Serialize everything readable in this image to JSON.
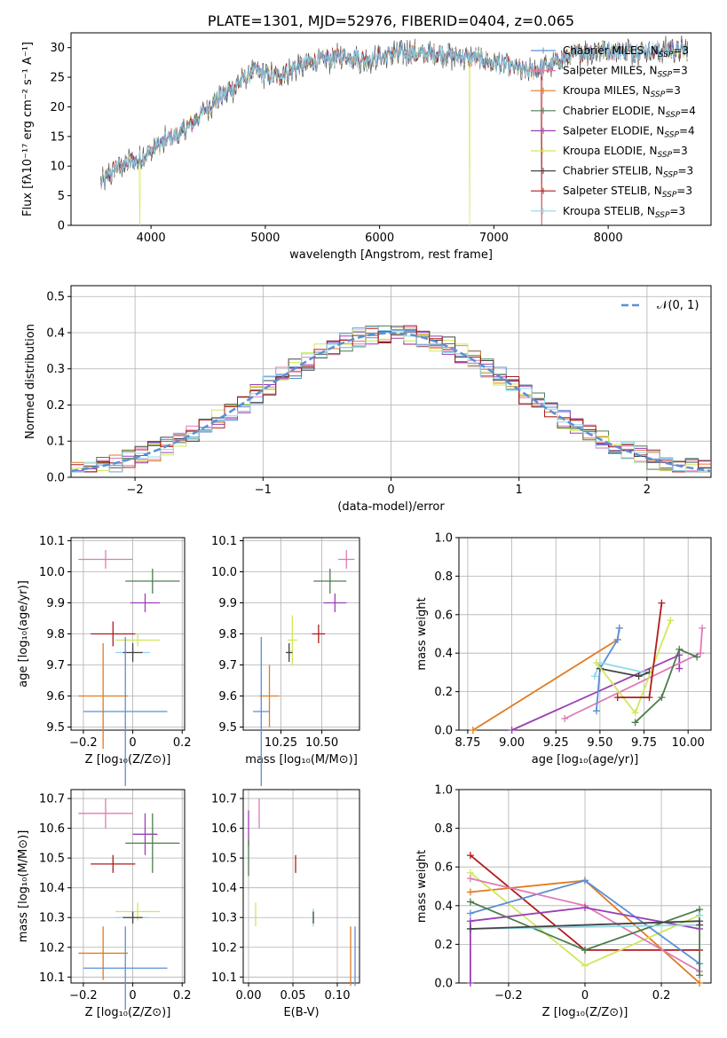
{
  "colors": {
    "Chabrier MILES": "#5b8fd6",
    "Salpeter MILES": "#e07ab5",
    "Kroupa MILES": "#e07b22",
    "Chabrier ELODIE": "#4d7d4d",
    "Salpeter ELODIE": "#9b3fb5",
    "Kroupa ELODIE": "#cfe85a",
    "Chabrier STELIB": "#444444",
    "Salpeter STELIB": "#b01c1c",
    "Kroupa STELIB": "#8fd8e8",
    "cyan": "#66cccc",
    "gauss": "#5b8fd6"
  },
  "chart_data": [
    {
      "id": "spectrum",
      "type": "line",
      "title": "PLATE=1301, MJD=52976, FIBERID=0404, z=0.065",
      "xlabel": "wavelength [Angstrom, rest frame]",
      "ylabel": "Flux [fλ10⁻¹⁷ erg cm⁻² s⁻¹ A⁻¹]",
      "xlim": [
        3300,
        8900
      ],
      "ylim": [
        0,
        32.5
      ],
      "xticks": [
        4000,
        5000,
        6000,
        7000,
        8000
      ],
      "yticks": [
        0,
        5,
        10,
        15,
        20,
        25,
        30
      ],
      "legend_position": "right",
      "legend": [
        {
          "name": "Chabrier MILES",
          "suffix": "3"
        },
        {
          "name": "Salpeter MILES",
          "suffix": "3"
        },
        {
          "name": "Kroupa MILES",
          "suffix": "3"
        },
        {
          "name": "Chabrier ELODIE",
          "suffix": "4"
        },
        {
          "name": "Salpeter ELODIE",
          "suffix": "4"
        },
        {
          "name": "Kroupa ELODIE",
          "suffix": "3"
        },
        {
          "name": "Chabrier STELIB",
          "suffix": "3"
        },
        {
          "name": "Salpeter STELIB",
          "suffix": "3"
        },
        {
          "name": "Kroupa STELIB",
          "suffix": "3"
        }
      ],
      "continuum_x": [
        3560,
        3700,
        3900,
        4100,
        4300,
        4500,
        4700,
        4900,
        5100,
        5300,
        5500,
        5700,
        5900,
        6100,
        6300,
        6500,
        6700,
        6900,
        7100,
        7300,
        7500,
        7700,
        7900,
        8100,
        8300,
        8500,
        8700
      ],
      "continuum_y": [
        7,
        10,
        11,
        14,
        16,
        20,
        23,
        26,
        25,
        27,
        28,
        28.5,
        28,
        29,
        29,
        29,
        28.5,
        28,
        27,
        26,
        27,
        29,
        29.5,
        29.5,
        29.5,
        29.5,
        29.5
      ],
      "dropouts": [
        {
          "series": "Kroupa ELODIE",
          "x": 3900
        },
        {
          "series": "Kroupa ELODIE",
          "x": 6790
        },
        {
          "series": "Salpeter STELIB",
          "x": 7420
        }
      ]
    },
    {
      "id": "residual_hist",
      "type": "line",
      "xlabel": "(data-model)/error",
      "ylabel": "Normed distribution",
      "xlim": [
        -2.5,
        2.5
      ],
      "ylim": [
        0,
        0.53
      ],
      "xticks": [
        -2,
        -1,
        0,
        1,
        2
      ],
      "yticks": [
        0.0,
        0.1,
        0.2,
        0.3,
        0.4,
        0.5
      ],
      "legend_position": "top-right",
      "gauss_label": "𝒩(0, 1)",
      "bin_width": 0.1
    },
    {
      "id": "age_vs_Z",
      "type": "scatter",
      "xlabel": "Z [log₁₀(Z/Z⊙)]",
      "ylabel": "age  [log₁₀(age/yr)]",
      "xlim": [
        -0.25,
        0.21
      ],
      "ylim": [
        9.49,
        10.11
      ],
      "xticks": [
        -0.2,
        0.0,
        0.2
      ],
      "yticks": [
        9.5,
        9.6,
        9.7,
        9.8,
        9.9,
        10.0,
        10.1
      ],
      "points": [
        {
          "series": "Salpeter MILES",
          "x": -0.11,
          "y": 10.04,
          "xerr": 0.11,
          "yerr": 0.03
        },
        {
          "series": "Chabrier ELODIE",
          "x": 0.08,
          "y": 9.97,
          "xerr": 0.11,
          "yerr": 0.04
        },
        {
          "series": "Salpeter ELODIE",
          "x": 0.05,
          "y": 9.9,
          "xerr": 0.06,
          "yerr": 0.03
        },
        {
          "series": "Salpeter STELIB",
          "x": -0.08,
          "y": 9.8,
          "xerr": 0.09,
          "yerr": 0.04
        },
        {
          "series": "Kroupa ELODIE",
          "x": 0.02,
          "y": 9.78,
          "xerr": 0.09,
          "yerr": 0.02
        },
        {
          "series": "Kroupa STELIB",
          "x": 0.0,
          "y": 9.74,
          "xerr": 0.07,
          "yerr": 0.02
        },
        {
          "series": "Chabrier STELIB",
          "x": 0.0,
          "y": 9.74,
          "xerr": 0.04,
          "yerr": 0.03
        },
        {
          "series": "Kroupa MILES",
          "x": -0.12,
          "y": 9.6,
          "xerr": 0.1,
          "yerr": 0.17
        },
        {
          "series": "Chabrier MILES",
          "x": -0.03,
          "y": 9.55,
          "xerr": 0.17,
          "yerr": 0.24
        }
      ]
    },
    {
      "id": "age_vs_mass",
      "type": "scatter",
      "xlabel": "mass [log₁₀(M/M⊙)]",
      "ylabel": "",
      "xlim": [
        10.02,
        10.73
      ],
      "ylim": [
        9.49,
        10.11
      ],
      "xticks": [
        10.25,
        10.5
      ],
      "xticklabels": [
        "10.25",
        "10.50"
      ],
      "yticks": [
        9.5,
        9.6,
        9.7,
        9.8,
        9.9,
        10.0,
        10.1
      ],
      "points": [
        {
          "series": "Salpeter MILES",
          "x": 10.65,
          "y": 10.04,
          "xerr": 0.05,
          "yerr": 0.03
        },
        {
          "series": "Chabrier ELODIE",
          "x": 10.55,
          "y": 9.97,
          "xerr": 0.1,
          "yerr": 0.04
        },
        {
          "series": "Salpeter ELODIE",
          "x": 10.58,
          "y": 9.9,
          "xerr": 0.07,
          "yerr": 0.03
        },
        {
          "series": "Salpeter STELIB",
          "x": 10.48,
          "y": 9.8,
          "xerr": 0.04,
          "yerr": 0.03
        },
        {
          "series": "Kroupa ELODIE",
          "x": 10.32,
          "y": 9.78,
          "xerr": 0.03,
          "yerr": 0.08
        },
        {
          "series": "Kroupa STELIB",
          "x": 10.3,
          "y": 9.74,
          "xerr": 0.02,
          "yerr": 0.02
        },
        {
          "series": "Chabrier STELIB",
          "x": 10.3,
          "y": 9.74,
          "xerr": 0.02,
          "yerr": 0.03
        },
        {
          "series": "Kroupa MILES",
          "x": 10.18,
          "y": 9.6,
          "xerr": 0.06,
          "yerr": 0.1
        },
        {
          "series": "Chabrier MILES",
          "x": 10.13,
          "y": 9.55,
          "xerr": 0.05,
          "yerr": 0.24
        }
      ]
    },
    {
      "id": "massweight_vs_age",
      "type": "line",
      "xlabel": "age  [log₁₀(age/yr)]",
      "ylabel": "mass weight",
      "xlim": [
        8.7,
        10.13
      ],
      "ylim": [
        0,
        1
      ],
      "xticks": [
        8.75,
        9.0,
        9.25,
        9.5,
        9.75,
        10.0
      ],
      "xticklabels": [
        "8.75",
        "9.00",
        "9.25",
        "9.50",
        "9.75",
        "10.00"
      ],
      "yticks": [
        0.0,
        0.2,
        0.4,
        0.6,
        0.8,
        1.0
      ],
      "series": [
        {
          "name": "Kroupa MILES",
          "x": [
            8.78,
            9.6,
            9.61
          ],
          "y": [
            0.0,
            0.47,
            0.53
          ]
        },
        {
          "name": "Salpeter ELODIE",
          "x": [
            9.0,
            9.95,
            9.95
          ],
          "y": [
            0.0,
            0.39,
            0.32
          ]
        },
        {
          "name": "Salpeter MILES",
          "x": [
            9.3,
            10.07,
            10.08
          ],
          "y": [
            0.06,
            0.4,
            0.53
          ]
        },
        {
          "name": "Chabrier MILES",
          "x": [
            9.48,
            9.5,
            9.6,
            9.61
          ],
          "y": [
            0.1,
            0.32,
            0.47,
            0.53
          ]
        },
        {
          "name": "Kroupa STELIB",
          "x": [
            9.47,
            9.5,
            9.75
          ],
          "y": [
            0.28,
            0.35,
            0.3
          ]
        },
        {
          "name": "Chabrier STELIB",
          "x": [
            9.5,
            9.72,
            9.78
          ],
          "y": [
            0.32,
            0.28,
            0.3
          ]
        },
        {
          "name": "Kroupa ELODIE",
          "x": [
            9.48,
            9.7,
            9.9
          ],
          "y": [
            0.35,
            0.09,
            0.57
          ]
        },
        {
          "name": "Chabrier ELODIE",
          "x": [
            9.7,
            9.85,
            9.95,
            10.05
          ],
          "y": [
            0.04,
            0.17,
            0.42,
            0.38
          ]
        },
        {
          "name": "Salpeter STELIB",
          "x": [
            9.6,
            9.78,
            9.85
          ],
          "y": [
            0.17,
            0.17,
            0.66
          ]
        }
      ]
    },
    {
      "id": "mass_vs_Z",
      "type": "scatter",
      "xlabel": "Z [log₁₀(Z/Z⊙)]",
      "ylabel": "mass [log₁₀(M/M⊙)]",
      "xlim": [
        -0.25,
        0.21
      ],
      "ylim": [
        10.08,
        10.73
      ],
      "xticks": [
        -0.2,
        0.0,
        0.2
      ],
      "yticks": [
        10.1,
        10.2,
        10.3,
        10.4,
        10.5,
        10.6,
        10.7
      ],
      "points": [
        {
          "series": "Salpeter MILES",
          "x": -0.11,
          "y": 10.65,
          "xerr": 0.11,
          "yerr": 0.05
        },
        {
          "series": "Salpeter ELODIE",
          "x": 0.05,
          "y": 10.58,
          "xerr": 0.05,
          "yerr": 0.07
        },
        {
          "series": "Chabrier ELODIE",
          "x": 0.08,
          "y": 10.55,
          "xerr": 0.11,
          "yerr": 0.1
        },
        {
          "series": "Salpeter STELIB",
          "x": -0.08,
          "y": 10.48,
          "xerr": 0.09,
          "yerr": 0.03
        },
        {
          "series": "Kroupa ELODIE",
          "x": 0.02,
          "y": 10.32,
          "xerr": 0.09,
          "yerr": 0.03
        },
        {
          "series": "Kroupa STELIB",
          "x": 0.0,
          "y": 10.3,
          "xerr": 0.07,
          "yerr": 0.02
        },
        {
          "series": "Chabrier STELIB",
          "x": 0.0,
          "y": 10.3,
          "xerr": 0.04,
          "yerr": 0.02
        },
        {
          "series": "Kroupa MILES",
          "x": -0.12,
          "y": 10.18,
          "xerr": 0.1,
          "yerr": 0.09
        },
        {
          "series": "Chabrier MILES",
          "x": -0.03,
          "y": 10.13,
          "xerr": 0.17,
          "yerr": 0.14
        }
      ]
    },
    {
      "id": "mass_vs_ebv",
      "type": "scatter",
      "xlabel": "E(B-V)",
      "ylabel": "",
      "xlim": [
        -0.006,
        0.125
      ],
      "ylim": [
        10.08,
        10.73
      ],
      "xticks": [
        0.0,
        0.05,
        0.1
      ],
      "xticklabels": [
        "0.00",
        "0.05",
        "0.10"
      ],
      "yticks": [
        10.1,
        10.2,
        10.3,
        10.4,
        10.5,
        10.6,
        10.7
      ],
      "points": [
        {
          "series": "Salpeter MILES",
          "x": 0.012,
          "y": 10.65,
          "xerr": 0,
          "yerr": 0.05
        },
        {
          "series": "Salpeter ELODIE",
          "x": 0.0,
          "y": 10.6,
          "xerr": 0,
          "yerr": 0.06
        },
        {
          "series": "Chabrier ELODIE",
          "x": 0.0,
          "y": 10.5,
          "xerr": 0,
          "yerr": 0.06
        },
        {
          "series": "Salpeter STELIB",
          "x": 0.053,
          "y": 10.48,
          "xerr": 0,
          "yerr": 0.03
        },
        {
          "series": "Kroupa ELODIE",
          "x": 0.008,
          "y": 10.31,
          "xerr": 0,
          "yerr": 0.04
        },
        {
          "series": "Kroupa STELIB",
          "x": 0.073,
          "y": 10.3,
          "xerr": 0,
          "yerr": 0.03
        },
        {
          "series": "Chabrier STELIB",
          "x": 0.073,
          "y": 10.3,
          "xerr": 0,
          "yerr": 0.02
        },
        {
          "series": "Kroupa MILES",
          "x": 0.115,
          "y": 10.17,
          "xerr": 0,
          "yerr": 0.1
        },
        {
          "series": "Chabrier MILES",
          "x": 0.12,
          "y": 10.17,
          "xerr": 0,
          "yerr": 0.1
        }
      ]
    },
    {
      "id": "massweight_vs_Z",
      "type": "line",
      "xlabel": "Z [log₁₀(Z/Z⊙)]",
      "ylabel": "mass weight",
      "xlim": [
        -0.33,
        0.33
      ],
      "ylim": [
        0,
        1
      ],
      "xticks": [
        -0.2,
        0.0,
        0.2
      ],
      "yticks": [
        0.0,
        0.2,
        0.4,
        0.6,
        0.8,
        1.0
      ],
      "series": [
        {
          "name": "Salpeter STELIB",
          "x": [
            -0.3,
            0.0,
            0.3
          ],
          "y": [
            0.66,
            0.17,
            0.17
          ]
        },
        {
          "name": "Kroupa MILES",
          "x": [
            -0.3,
            0.0,
            0.3
          ],
          "y": [
            0.47,
            0.53,
            0.0
          ]
        },
        {
          "name": "Kroupa ELODIE",
          "x": [
            -0.3,
            0.0,
            0.3
          ],
          "y": [
            0.57,
            0.09,
            0.35
          ]
        },
        {
          "name": "Chabrier MILES",
          "x": [
            -0.3,
            0.0,
            0.3
          ],
          "y": [
            0.36,
            0.53,
            0.1
          ]
        },
        {
          "name": "Salpeter MILES",
          "x": [
            -0.3,
            0.0,
            0.3
          ],
          "y": [
            0.54,
            0.4,
            0.06
          ]
        },
        {
          "name": "Salpeter ELODIE",
          "x": [
            -0.3,
            -0.3,
            0.0,
            0.3
          ],
          "y": [
            0.0,
            0.32,
            0.39,
            0.28
          ]
        },
        {
          "name": "Chabrier ELODIE",
          "x": [
            -0.3,
            0.0,
            0.3,
            0.3
          ],
          "y": [
            0.42,
            0.17,
            0.38,
            0.04
          ]
        },
        {
          "name": "Kroupa STELIB",
          "x": [
            -0.3,
            0.3,
            0.3
          ],
          "y": [
            0.28,
            0.3,
            0.35
          ]
        },
        {
          "name": "Chabrier STELIB",
          "x": [
            -0.3,
            0.3,
            0.3
          ],
          "y": [
            0.28,
            0.32,
            0.3
          ]
        }
      ]
    }
  ]
}
